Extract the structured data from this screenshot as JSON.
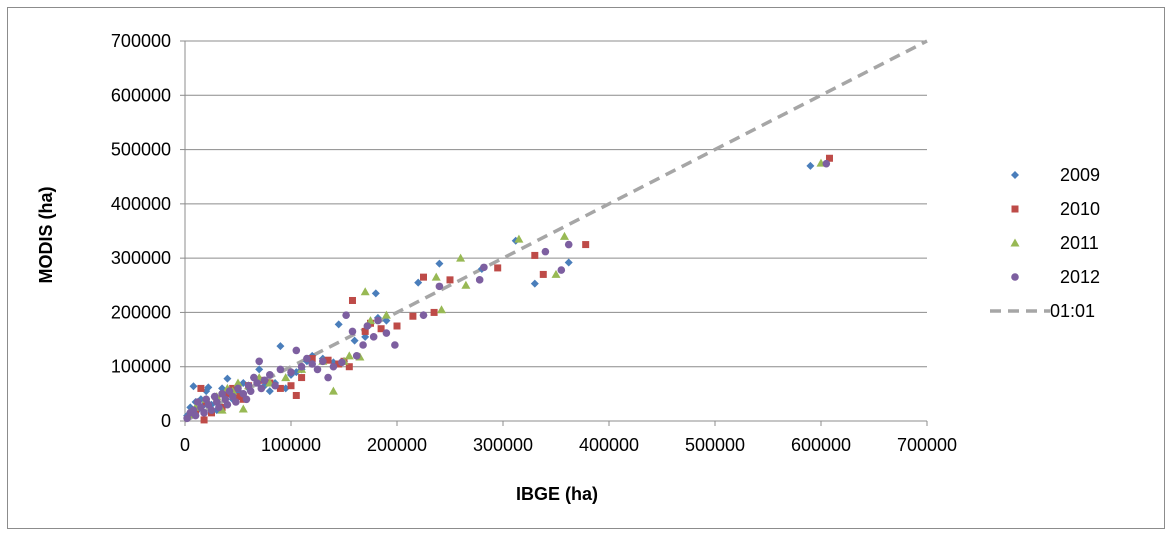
{
  "chart_data": {
    "type": "scatter",
    "xlabel": "IBGE (ha)",
    "ylabel": "MODIS (ha)",
    "xlim": [
      0,
      700000
    ],
    "ylim": [
      0,
      700000
    ],
    "xticks": [
      "0",
      "100000",
      "200000",
      "300000",
      "400000",
      "500000",
      "600000",
      "700000"
    ],
    "yticks": [
      "0",
      "100000",
      "200000",
      "300000",
      "400000",
      "500000",
      "600000",
      "700000"
    ],
    "grid": "horizontal",
    "legend_position": "right",
    "series": [
      {
        "name": "2009",
        "color": "#4a7ebb",
        "marker": "diamond",
        "x": [
          2000,
          5000,
          8000,
          10000,
          12000,
          15000,
          18000,
          20000,
          22000,
          25000,
          28000,
          30000,
          35000,
          38000,
          40000,
          45000,
          50000,
          55000,
          60000,
          65000,
          70000,
          75000,
          80000,
          85000,
          90000,
          95000,
          100000,
          105000,
          110000,
          115000,
          120000,
          130000,
          140000,
          145000,
          150000,
          160000,
          170000,
          180000,
          182000,
          190000,
          220000,
          225000,
          240000,
          280000,
          312000,
          330000,
          362000,
          590000
        ],
        "y": [
          10000,
          25000,
          64000,
          35000,
          20000,
          40000,
          30000,
          55000,
          62000,
          30000,
          45000,
          20000,
          60000,
          50000,
          78000,
          40000,
          55000,
          70000,
          60000,
          80000,
          95000,
          65000,
          55000,
          70000,
          138000,
          60000,
          85000,
          90000,
          95000,
          110000,
          120000,
          115000,
          108000,
          178000,
          110000,
          148000,
          155000,
          235000,
          190000,
          185000,
          255000,
          195000,
          290000,
          280000,
          332000,
          253000,
          292000,
          470000
        ]
      },
      {
        "name": "2010",
        "color": "#be4b48",
        "marker": "square",
        "x": [
          10000,
          15000,
          18000,
          20000,
          25000,
          30000,
          35000,
          40000,
          45000,
          50000,
          55000,
          60000,
          70000,
          80000,
          90000,
          100000,
          105000,
          110000,
          120000,
          135000,
          145000,
          150000,
          155000,
          158000,
          170000,
          175000,
          185000,
          200000,
          215000,
          225000,
          235000,
          250000,
          295000,
          330000,
          338000,
          378000,
          608000
        ],
        "y": [
          20000,
          60000,
          2000,
          35000,
          15000,
          40000,
          25000,
          50000,
          60000,
          45000,
          40000,
          65000,
          75000,
          70000,
          60000,
          65000,
          47000,
          80000,
          115000,
          112000,
          105000,
          110000,
          100000,
          222000,
          165000,
          180000,
          170000,
          175000,
          193000,
          265000,
          200000,
          260000,
          282000,
          305000,
          270000,
          325000,
          484000
        ]
      },
      {
        "name": "2011",
        "color": "#98b954",
        "marker": "triangle",
        "x": [
          5000,
          10000,
          20000,
          30000,
          35000,
          40000,
          45000,
          50000,
          55000,
          60000,
          70000,
          80000,
          95000,
          110000,
          130000,
          140000,
          150000,
          155000,
          165000,
          170000,
          175000,
          190000,
          237000,
          242000,
          260000,
          265000,
          315000,
          350000,
          358000,
          600000
        ],
        "y": [
          12000,
          25000,
          40000,
          45000,
          20000,
          60000,
          55000,
          70000,
          22000,
          65000,
          80000,
          70000,
          80000,
          95000,
          110000,
          55000,
          110000,
          120000,
          118000,
          238000,
          185000,
          195000,
          265000,
          205000,
          300000,
          250000,
          335000,
          270000,
          340000,
          475000
        ]
      },
      {
        "name": "2012",
        "color": "#7d5fa0",
        "marker": "circle",
        "x": [
          2000,
          5000,
          8000,
          10000,
          12000,
          15000,
          18000,
          20000,
          22000,
          25000,
          28000,
          30000,
          32000,
          35000,
          38000,
          40000,
          42000,
          45000,
          48000,
          50000,
          55000,
          58000,
          60000,
          62000,
          65000,
          68000,
          70000,
          72000,
          75000,
          80000,
          85000,
          90000,
          100000,
          105000,
          110000,
          115000,
          120000,
          125000,
          130000,
          135000,
          140000,
          148000,
          152000,
          158000,
          162000,
          168000,
          172000,
          178000,
          182000,
          190000,
          198000,
          225000,
          240000,
          278000,
          282000,
          340000,
          355000,
          362000,
          605000
        ],
        "y": [
          5000,
          15000,
          20000,
          10000,
          35000,
          25000,
          15000,
          40000,
          30000,
          20000,
          45000,
          35000,
          25000,
          50000,
          40000,
          30000,
          55000,
          45000,
          35000,
          60000,
          50000,
          40000,
          65000,
          55000,
          80000,
          70000,
          110000,
          60000,
          75000,
          85000,
          65000,
          95000,
          90000,
          130000,
          100000,
          115000,
          105000,
          95000,
          110000,
          80000,
          100000,
          108000,
          195000,
          165000,
          120000,
          140000,
          175000,
          155000,
          185000,
          162000,
          140000,
          195000,
          248000,
          260000,
          283000,
          312000,
          278000,
          325000,
          474000
        ]
      }
    ],
    "reference_line": {
      "name": "01:01",
      "color": "#a6a6a6",
      "style": "dashed",
      "from": [
        0,
        0
      ],
      "to": [
        700000,
        700000
      ]
    }
  }
}
